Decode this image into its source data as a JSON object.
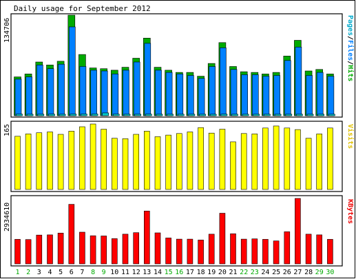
{
  "chart_data": [
    {
      "type": "bar",
      "title": "Daily usage for September 2012",
      "ylabel": "Pages/Files/Hits",
      "y_max_label": "134706",
      "ylim": [
        0,
        134706
      ],
      "categories": [
        "1",
        "2",
        "3",
        "4",
        "5",
        "6",
        "7",
        "8",
        "9",
        "10",
        "11",
        "12",
        "13",
        "14",
        "15",
        "16",
        "17",
        "18",
        "19",
        "20",
        "21",
        "22",
        "23",
        "24",
        "25",
        "26",
        "27",
        "28",
        "29",
        "30"
      ],
      "series": [
        {
          "name": "Hits",
          "color": "#00aa00",
          "values": [
            52000,
            56000,
            72000,
            68000,
            73000,
            134706,
            82000,
            64000,
            63000,
            61000,
            65000,
            77000,
            104000,
            65000,
            61000,
            58000,
            58000,
            53000,
            70000,
            98000,
            66000,
            59000,
            58000,
            56000,
            58000,
            80000,
            101000,
            60000,
            62000,
            56000
          ]
        },
        {
          "name": "Files",
          "color": "#0080ff",
          "values": [
            49000,
            52000,
            68000,
            63000,
            69000,
            119000,
            66000,
            61000,
            60000,
            56000,
            61000,
            72000,
            97000,
            61000,
            58000,
            56000,
            54000,
            50000,
            66000,
            91000,
            62000,
            55000,
            55000,
            53000,
            54000,
            74000,
            92000,
            54000,
            58000,
            53000
          ]
        },
        {
          "name": "Pages",
          "color": "#00c8c8",
          "values": [
            2200,
            2000,
            2000,
            2100,
            2000,
            2300,
            2300,
            2400,
            3800,
            2100,
            2000,
            2000,
            2100,
            2000,
            2000,
            2000,
            2000,
            2000,
            2000,
            2100,
            2000,
            2000,
            2000,
            2000,
            2000,
            2000,
            2000,
            2000,
            2000,
            2000
          ]
        }
      ]
    },
    {
      "type": "bar",
      "ylabel": "Visits",
      "y_max_label": "165",
      "ylim": [
        0,
        165
      ],
      "categories": [
        "1",
        "2",
        "3",
        "4",
        "5",
        "6",
        "7",
        "8",
        "9",
        "10",
        "11",
        "12",
        "13",
        "14",
        "15",
        "16",
        "17",
        "18",
        "19",
        "20",
        "21",
        "22",
        "23",
        "24",
        "25",
        "26",
        "27",
        "28",
        "29",
        "30"
      ],
      "series": [
        {
          "name": "Visits",
          "color": "#ffff00",
          "values": [
            134,
            140,
            143,
            145,
            139,
            147,
            158,
            165,
            152,
            129,
            128,
            139,
            147,
            133,
            137,
            141,
            145,
            156,
            142,
            152,
            120,
            141,
            140,
            155,
            160,
            155,
            151,
            129,
            140,
            155
          ]
        }
      ]
    },
    {
      "type": "bar",
      "ylabel": "KBytes",
      "y_max_label": "2934610",
      "ylim": [
        0,
        2934610
      ],
      "categories": [
        "1",
        "2",
        "3",
        "4",
        "5",
        "6",
        "7",
        "8",
        "9",
        "10",
        "11",
        "12",
        "13",
        "14",
        "15",
        "16",
        "17",
        "18",
        "19",
        "20",
        "21",
        "22",
        "23",
        "24",
        "25",
        "26",
        "27",
        "28",
        "29",
        "30"
      ],
      "series": [
        {
          "name": "KBytes",
          "color": "#ff0000",
          "values": [
            1100000,
            1090000,
            1290000,
            1300000,
            1380000,
            2670000,
            1420000,
            1260000,
            1250000,
            1130000,
            1330000,
            1400000,
            2370000,
            1390000,
            1160000,
            1110000,
            1110000,
            1070000,
            1330000,
            2270000,
            1350000,
            1110000,
            1120000,
            1100000,
            1030000,
            1440000,
            2934610,
            1330000,
            1300000,
            1100000
          ]
        }
      ]
    }
  ],
  "weekend_days": [
    "1",
    "2",
    "8",
    "9",
    "15",
    "16",
    "22",
    "23",
    "29",
    "30"
  ],
  "colors": {
    "weekday_label": "#000000",
    "weekend_label": "#00aa00",
    "frame_bg": "#ffffff",
    "border": "#000000",
    "shadow": "#808080"
  }
}
